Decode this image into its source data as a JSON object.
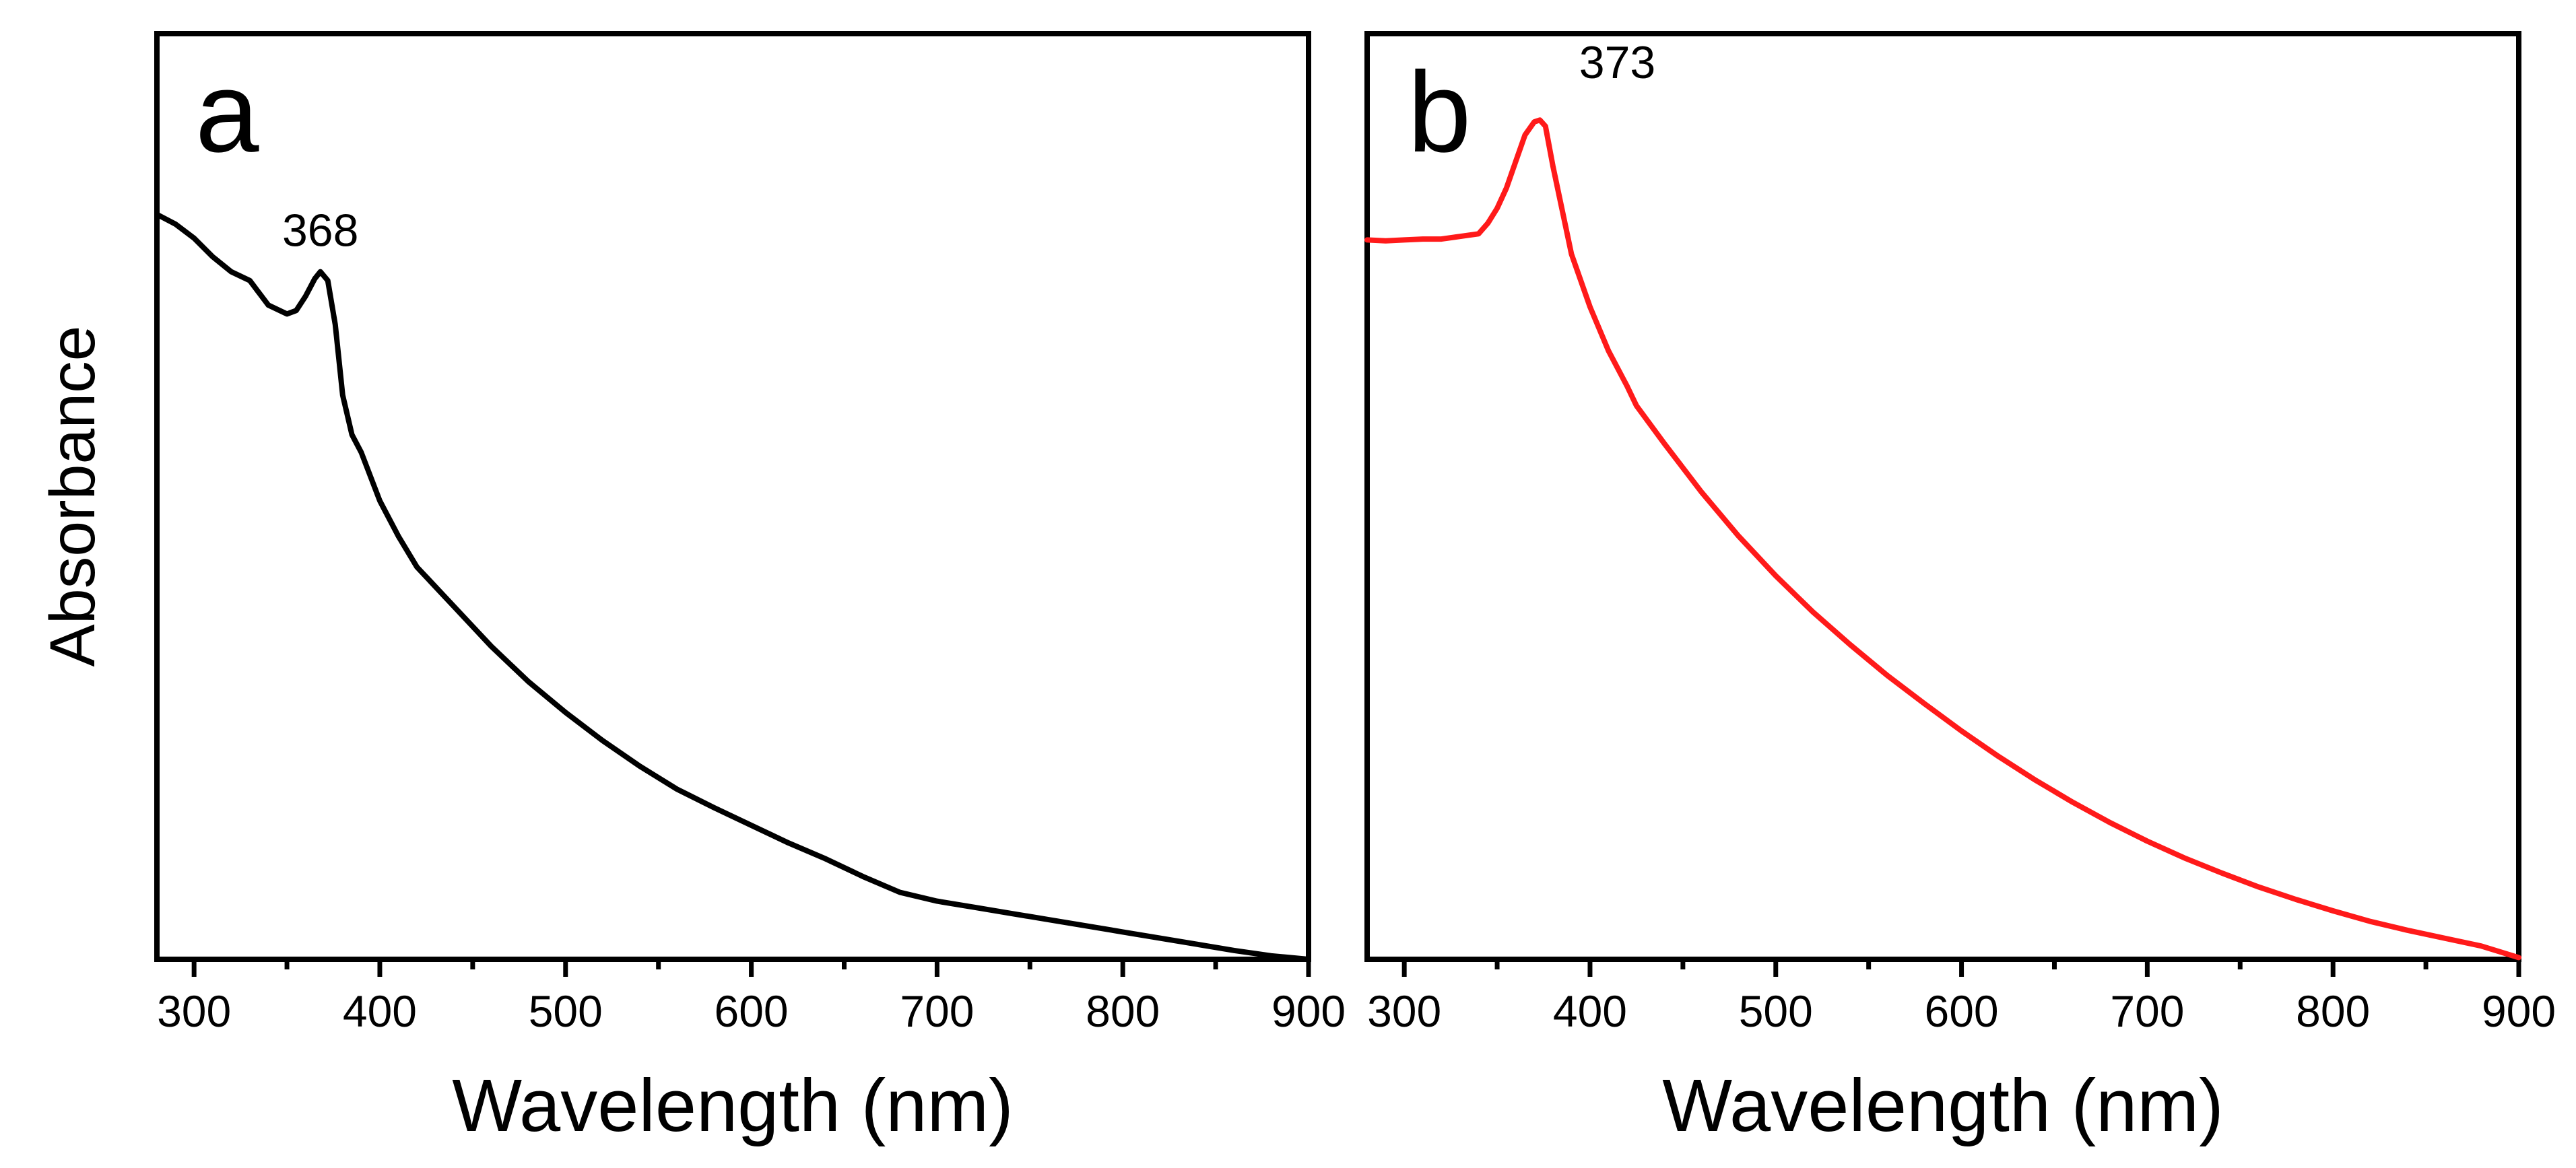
{
  "chart_data": [
    {
      "type": "line",
      "panel_label": "a",
      "xlabel": "Wavelength (nm)",
      "ylabel": "Absorbance",
      "xlim": [
        280,
        900
      ],
      "ylim": [
        0,
        1.05
      ],
      "x_ticks": [
        300,
        400,
        500,
        600,
        700,
        800,
        900
      ],
      "x_tick_labels": [
        "300",
        "400",
        "500",
        "600",
        "700",
        "800",
        "900"
      ],
      "y_ticks_shown": false,
      "color": "#000000",
      "peak_annotation": {
        "text": "368",
        "x": 368,
        "y": 0.78
      },
      "series": [
        {
          "name": "a",
          "x": [
            280,
            290,
            300,
            310,
            320,
            330,
            340,
            350,
            355,
            360,
            365,
            368,
            372,
            376,
            380,
            385,
            390,
            400,
            410,
            420,
            440,
            460,
            480,
            500,
            520,
            540,
            560,
            580,
            600,
            620,
            640,
            660,
            680,
            700,
            720,
            740,
            760,
            780,
            800,
            820,
            840,
            860,
            880,
            900
          ],
          "y": [
            0.845,
            0.834,
            0.818,
            0.797,
            0.78,
            0.77,
            0.742,
            0.732,
            0.736,
            0.752,
            0.772,
            0.78,
            0.77,
            0.72,
            0.64,
            0.595,
            0.575,
            0.52,
            0.48,
            0.445,
            0.4,
            0.355,
            0.315,
            0.28,
            0.248,
            0.219,
            0.193,
            0.172,
            0.152,
            0.132,
            0.114,
            0.094,
            0.076,
            0.066,
            0.059,
            0.052,
            0.045,
            0.038,
            0.031,
            0.024,
            0.017,
            0.01,
            0.004,
            0.0
          ]
        }
      ]
    },
    {
      "type": "line",
      "panel_label": "b",
      "xlabel": "Wavelength (nm)",
      "ylabel": "",
      "xlim": [
        280,
        900
      ],
      "ylim": [
        0,
        1.05
      ],
      "x_ticks": [
        300,
        400,
        500,
        600,
        700,
        800,
        900
      ],
      "x_tick_labels": [
        "300",
        "400",
        "500",
        "600",
        "700",
        "800",
        "900"
      ],
      "y_ticks_shown": false,
      "color": "#ff1a1a",
      "peak_annotation": {
        "text": "373",
        "x": 373,
        "y": 0.95
      },
      "series": [
        {
          "name": "b",
          "x": [
            280,
            290,
            300,
            310,
            320,
            330,
            340,
            345,
            350,
            355,
            360,
            365,
            370,
            373,
            376,
            380,
            385,
            390,
            400,
            410,
            420,
            425,
            440,
            460,
            480,
            500,
            520,
            540,
            560,
            580,
            600,
            620,
            640,
            660,
            680,
            700,
            720,
            740,
            760,
            780,
            800,
            820,
            840,
            860,
            880,
            900
          ],
          "y": [
            0.816,
            0.815,
            0.816,
            0.817,
            0.817,
            0.82,
            0.823,
            0.835,
            0.852,
            0.875,
            0.905,
            0.935,
            0.95,
            0.952,
            0.945,
            0.9,
            0.85,
            0.8,
            0.74,
            0.69,
            0.65,
            0.628,
            0.585,
            0.53,
            0.48,
            0.435,
            0.394,
            0.357,
            0.322,
            0.29,
            0.259,
            0.23,
            0.203,
            0.178,
            0.155,
            0.134,
            0.115,
            0.098,
            0.082,
            0.068,
            0.055,
            0.043,
            0.033,
            0.024,
            0.015,
            0.002
          ]
        }
      ]
    }
  ]
}
